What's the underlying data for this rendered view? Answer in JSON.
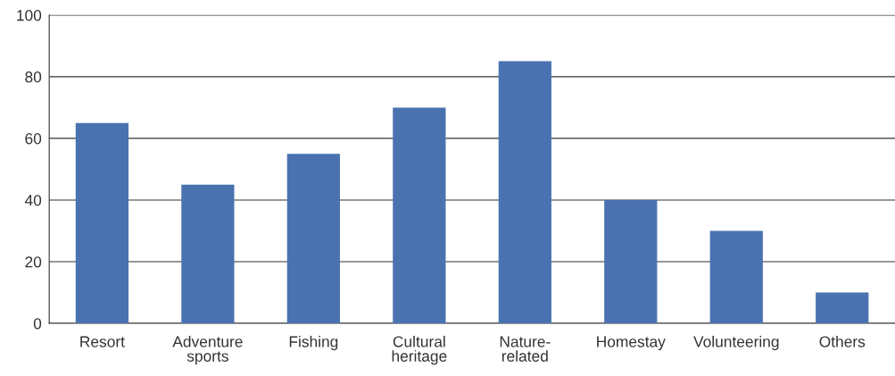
{
  "chart_data": {
    "type": "bar",
    "categories": [
      "Resort",
      "Adventure\nsports",
      "Fishing",
      "Cultural\nheritage",
      "Nature-\nrelated",
      "Homestay",
      "Volunteering",
      "Others"
    ],
    "values": [
      65,
      45,
      55,
      70,
      85,
      40,
      30,
      10
    ],
    "color": "#4a72b0",
    "ylim": [
      0,
      100
    ],
    "yticks": [
      0,
      20,
      40,
      60,
      80,
      100
    ],
    "grid": "y"
  }
}
